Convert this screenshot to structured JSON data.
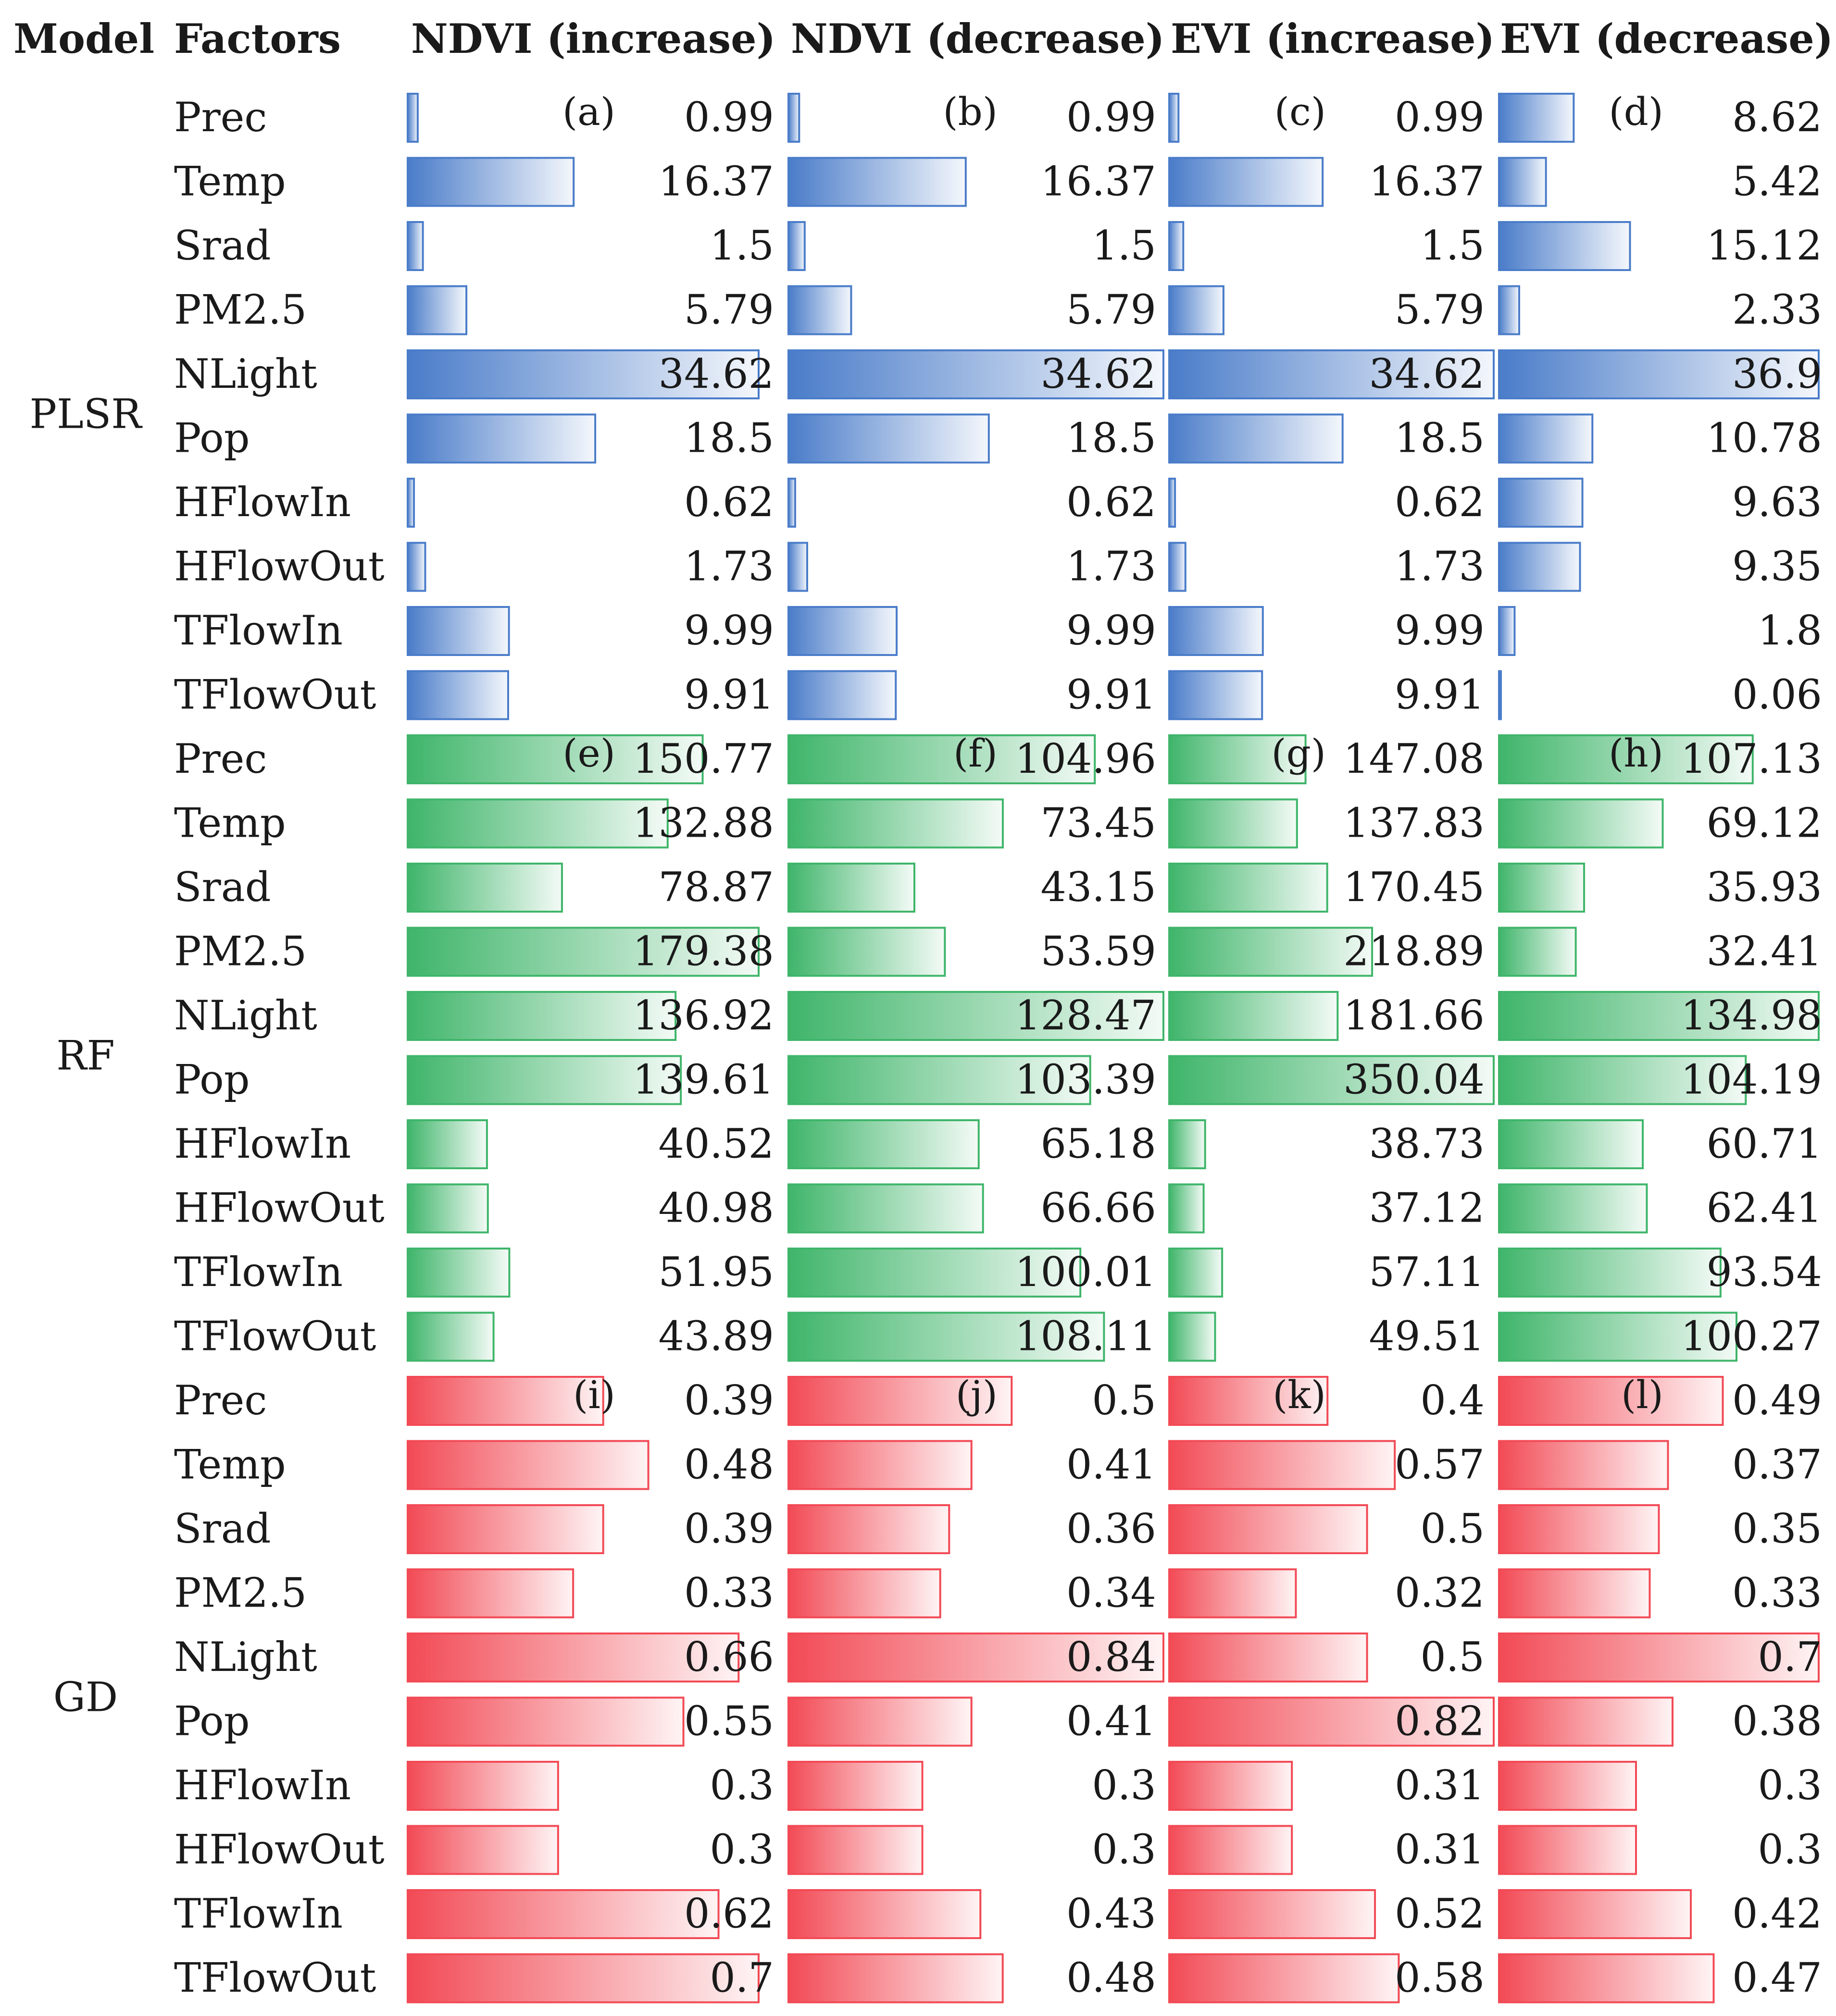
{
  "chart_data": {
    "type": "bar",
    "orientation": "horizontal",
    "header": {
      "model": "Model",
      "factors": "Factors",
      "columns": [
        "NDVI (increase)",
        "NDVI (decrease)",
        "EVI (increase)",
        "EVI (decrease)"
      ]
    },
    "factors": [
      "Prec",
      "Temp",
      "Srad",
      "PM2.5",
      "NLight",
      "Pop",
      "HFlowIn",
      "HFlowOut",
      "TFlowIn",
      "TFlowOut"
    ],
    "models": [
      {
        "name": "PLSR",
        "color": "#4a7cc9",
        "panels": [
          "(a)",
          "(b)",
          "(c)",
          "(d)"
        ],
        "series": [
          {
            "name": "NDVI (increase)",
            "values": [
              "0.99",
              "16.37",
              "1.5",
              "5.79",
              "34.62",
              "18.5",
              "0.62",
              "1.73",
              "9.99",
              "9.91"
            ]
          },
          {
            "name": "NDVI (decrease)",
            "values": [
              "0.99",
              "16.37",
              "1.5",
              "5.79",
              "34.62",
              "18.5",
              "0.62",
              "1.73",
              "9.99",
              "9.91"
            ]
          },
          {
            "name": "EVI (increase)",
            "values": [
              "0.99",
              "16.37",
              "1.5",
              "5.79",
              "34.62",
              "18.5",
              "0.62",
              "1.73",
              "9.99",
              "9.91"
            ]
          },
          {
            "name": "EVI (decrease)",
            "values": [
              "8.62",
              "5.42",
              "15.12",
              "2.33",
              "36.9",
              "10.78",
              "9.63",
              "9.35",
              "1.8",
              "0.06"
            ]
          }
        ]
      },
      {
        "name": "RF",
        "color": "#3fb56a",
        "panels": [
          "(e)",
          "(f)",
          "(g)",
          "(h)"
        ],
        "series": [
          {
            "name": "NDVI (increase)",
            "values": [
              "150.77",
              "132.88",
              "78.87",
              "179.38",
              "136.92",
              "139.61",
              "40.52",
              "40.98",
              "51.95",
              "43.89"
            ]
          },
          {
            "name": "NDVI (decrease)",
            "values": [
              "104.96",
              "73.45",
              "43.15",
              "53.59",
              "128.47",
              "103.39",
              "65.18",
              "66.66",
              "100.01",
              "108.11"
            ]
          },
          {
            "name": "EVI (increase)",
            "values": [
              "147.08",
              "137.83",
              "170.45",
              "218.89",
              "181.66",
              "350.04",
              "38.73",
              "37.12",
              "57.11",
              "49.51"
            ]
          },
          {
            "name": "EVI (decrease)",
            "values": [
              "107.13",
              "69.12",
              "35.93",
              "32.41",
              "134.98",
              "104.19",
              "60.71",
              "62.41",
              "93.54",
              "100.27"
            ]
          }
        ]
      },
      {
        "name": "GD",
        "color": "#f24a55",
        "panels": [
          "(i)",
          "(j)",
          "(k)",
          "(l)"
        ],
        "series": [
          {
            "name": "NDVI (increase)",
            "values": [
              "0.39",
              "0.48",
              "0.39",
              "0.33",
              "0.66",
              "0.55",
              "0.3",
              "0.3",
              "0.62",
              "0.7"
            ]
          },
          {
            "name": "NDVI (decrease)",
            "values": [
              "0.5",
              "0.41",
              "0.36",
              "0.34",
              "0.84",
              "0.41",
              "0.3",
              "0.3",
              "0.43",
              "0.48"
            ]
          },
          {
            "name": "EVI (increase)",
            "values": [
              "0.4",
              "0.57",
              "0.5",
              "0.32",
              "0.5",
              "0.82",
              "0.31",
              "0.31",
              "0.52",
              "0.58"
            ]
          },
          {
            "name": "EVI (decrease)",
            "values": [
              "0.49",
              "0.37",
              "0.35",
              "0.33",
              "0.7",
              "0.38",
              "0.3",
              "0.3",
              "0.42",
              "0.47"
            ]
          }
        ]
      }
    ]
  }
}
